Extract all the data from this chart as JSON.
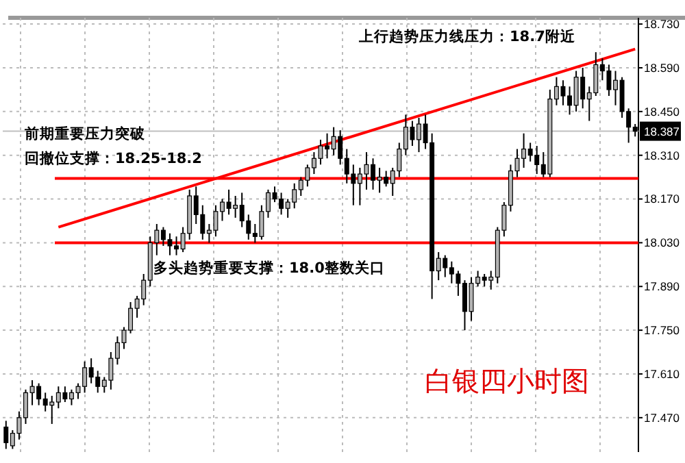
{
  "chart_data": {
    "type": "candlestick",
    "title": "白银四小时图",
    "categories": [
      null,
      null,
      null,
      null,
      null,
      null,
      null,
      null,
      null,
      null,
      null,
      null,
      null,
      null,
      null,
      null,
      null,
      null,
      null,
      null,
      null,
      null,
      null,
      null,
      null,
      null,
      null,
      null,
      null,
      null,
      null,
      null,
      null,
      null,
      null,
      null,
      null,
      null,
      null,
      null,
      null,
      null,
      null,
      null,
      null,
      null,
      null,
      null,
      null,
      null,
      null,
      null,
      null,
      null,
      null,
      null,
      null,
      null,
      null,
      null,
      null,
      null,
      null,
      null,
      null,
      null,
      null,
      null,
      null,
      null,
      null,
      null,
      null,
      null,
      null,
      null,
      null,
      null,
      null,
      null,
      null,
      null,
      null,
      null,
      null,
      null,
      null,
      null,
      null,
      null,
      null,
      null,
      null,
      null,
      null,
      null,
      null
    ],
    "ohlc": [
      [
        17.44,
        17.46,
        17.37,
        17.39
      ],
      [
        17.38,
        17.43,
        17.37,
        17.42
      ],
      [
        17.42,
        17.49,
        17.4,
        17.47
      ],
      [
        17.47,
        17.56,
        17.45,
        17.55
      ],
      [
        17.55,
        17.59,
        17.51,
        17.57
      ],
      [
        17.57,
        17.58,
        17.51,
        17.53
      ],
      [
        17.53,
        17.55,
        17.49,
        17.51
      ],
      [
        17.51,
        17.54,
        17.45,
        17.52
      ],
      [
        17.52,
        17.57,
        17.5,
        17.55
      ],
      [
        17.55,
        17.57,
        17.52,
        17.53
      ],
      [
        17.53,
        17.56,
        17.51,
        17.55
      ],
      [
        17.55,
        17.58,
        17.53,
        17.57
      ],
      [
        17.57,
        17.65,
        17.55,
        17.63
      ],
      [
        17.63,
        17.66,
        17.58,
        17.6
      ],
      [
        17.6,
        17.62,
        17.55,
        17.57
      ],
      [
        17.57,
        17.6,
        17.55,
        17.59
      ],
      [
        17.59,
        17.68,
        17.56,
        17.66
      ],
      [
        17.66,
        17.73,
        17.64,
        17.71
      ],
      [
        17.71,
        17.76,
        17.69,
        17.75
      ],
      [
        17.75,
        17.84,
        17.74,
        17.82
      ],
      [
        17.82,
        17.86,
        17.79,
        17.85
      ],
      [
        17.85,
        17.93,
        17.83,
        17.91
      ],
      [
        17.91,
        18.05,
        17.89,
        18.03
      ],
      [
        18.03,
        18.09,
        17.99,
        18.07
      ],
      [
        18.07,
        18.08,
        18.02,
        18.04
      ],
      [
        18.04,
        18.06,
        17.99,
        18.02
      ],
      [
        18.02,
        18.05,
        17.99,
        18.01
      ],
      [
        18.01,
        18.08,
        18.0,
        18.06
      ],
      [
        18.06,
        18.2,
        18.04,
        18.18
      ],
      [
        18.18,
        18.21,
        18.09,
        18.12
      ],
      [
        18.12,
        18.15,
        18.04,
        18.06
      ],
      [
        18.06,
        18.09,
        18.03,
        18.07
      ],
      [
        18.07,
        18.15,
        18.05,
        18.13
      ],
      [
        18.13,
        18.17,
        18.1,
        18.16
      ],
      [
        18.16,
        18.2,
        18.12,
        18.14
      ],
      [
        18.14,
        18.18,
        18.11,
        18.15
      ],
      [
        18.15,
        18.19,
        18.08,
        18.1
      ],
      [
        18.1,
        18.12,
        18.04,
        18.06
      ],
      [
        18.06,
        18.09,
        18.03,
        18.05
      ],
      [
        18.05,
        18.15,
        18.04,
        18.13
      ],
      [
        18.13,
        18.2,
        18.11,
        18.19
      ],
      [
        18.19,
        18.21,
        18.16,
        18.17
      ],
      [
        18.17,
        18.19,
        18.12,
        18.14
      ],
      [
        18.14,
        18.17,
        18.11,
        18.16
      ],
      [
        18.16,
        18.22,
        18.14,
        18.2
      ],
      [
        18.2,
        18.24,
        18.18,
        18.23
      ],
      [
        18.23,
        18.28,
        18.21,
        18.27
      ],
      [
        18.27,
        18.32,
        18.25,
        18.3
      ],
      [
        18.3,
        18.36,
        18.28,
        18.34
      ],
      [
        18.34,
        18.38,
        18.3,
        18.33
      ],
      [
        18.33,
        18.4,
        18.31,
        18.37
      ],
      [
        18.37,
        18.39,
        18.28,
        18.3
      ],
      [
        18.3,
        18.33,
        18.22,
        18.25
      ],
      [
        18.25,
        18.28,
        18.15,
        18.22
      ],
      [
        18.22,
        18.27,
        18.15,
        18.25
      ],
      [
        18.25,
        18.32,
        18.2,
        18.28
      ],
      [
        18.28,
        18.3,
        18.2,
        18.23
      ],
      [
        18.23,
        18.27,
        18.19,
        18.24
      ],
      [
        18.24,
        18.26,
        18.21,
        18.22
      ],
      [
        18.22,
        18.27,
        18.18,
        18.26
      ],
      [
        18.26,
        18.35,
        18.24,
        18.33
      ],
      [
        18.33,
        18.44,
        18.31,
        18.4
      ],
      [
        18.4,
        18.42,
        18.34,
        18.36
      ],
      [
        18.36,
        18.43,
        18.32,
        18.41
      ],
      [
        18.41,
        18.44,
        18.33,
        18.35
      ],
      [
        18.35,
        18.38,
        17.85,
        17.94
      ],
      [
        17.94,
        18.0,
        17.91,
        17.98
      ],
      [
        17.98,
        17.99,
        17.92,
        17.95
      ],
      [
        17.95,
        17.97,
        17.9,
        17.93
      ],
      [
        17.93,
        17.94,
        17.86,
        17.9
      ],
      [
        17.9,
        17.91,
        17.75,
        17.81
      ],
      [
        17.81,
        17.92,
        17.78,
        17.9
      ],
      [
        17.9,
        17.94,
        17.89,
        17.92
      ],
      [
        17.92,
        17.93,
        17.89,
        17.91
      ],
      [
        17.91,
        17.94,
        17.88,
        17.92
      ],
      [
        17.92,
        18.08,
        17.9,
        18.07
      ],
      [
        18.07,
        18.16,
        18.05,
        18.15
      ],
      [
        18.15,
        18.28,
        18.13,
        18.26
      ],
      [
        18.26,
        18.33,
        18.24,
        18.3
      ],
      [
        18.3,
        18.38,
        18.27,
        18.33
      ],
      [
        18.33,
        18.35,
        18.29,
        18.31
      ],
      [
        18.31,
        18.34,
        18.25,
        18.28
      ],
      [
        18.28,
        18.32,
        18.24,
        18.25
      ],
      [
        18.25,
        18.52,
        18.24,
        18.49
      ],
      [
        18.49,
        18.56,
        18.47,
        18.53
      ],
      [
        18.53,
        18.55,
        18.47,
        18.5
      ],
      [
        18.5,
        18.53,
        18.44,
        18.47
      ],
      [
        18.47,
        18.58,
        18.45,
        18.56
      ],
      [
        18.56,
        18.59,
        18.46,
        18.49
      ],
      [
        18.49,
        18.53,
        18.42,
        18.51
      ],
      [
        18.51,
        18.64,
        18.5,
        18.6
      ],
      [
        18.6,
        18.62,
        18.55,
        18.58
      ],
      [
        18.58,
        18.6,
        18.5,
        18.52
      ],
      [
        18.52,
        18.58,
        18.47,
        18.55
      ],
      [
        18.55,
        18.56,
        18.43,
        18.45
      ],
      [
        18.45,
        18.46,
        18.35,
        18.4
      ],
      [
        18.4,
        18.41,
        18.37,
        18.387
      ]
    ],
    "series": [
      {
        "type": "line",
        "color": "#ff0000",
        "values": [
          null,
          null,
          null,
          null,
          null,
          null,
          null,
          null,
          18.08,
          null,
          null,
          null,
          null,
          null,
          null,
          null,
          null,
          null,
          null,
          null,
          null,
          null,
          null,
          null,
          null,
          null,
          null,
          null,
          null,
          null,
          null,
          null,
          null,
          null,
          null,
          null,
          null,
          null,
          null,
          null,
          null,
          null,
          null,
          null,
          null,
          null,
          null,
          null,
          null,
          null,
          null,
          null,
          null,
          null,
          null,
          null,
          null,
          null,
          null,
          null,
          null,
          null,
          null,
          null,
          null,
          null,
          null,
          null,
          null,
          null,
          null,
          null,
          null,
          null,
          null,
          null,
          null,
          null,
          null,
          null,
          null,
          null,
          null,
          null,
          null,
          null,
          null,
          null,
          null,
          null,
          null,
          null,
          null,
          null,
          null,
          null,
          18.65
        ]
      }
    ],
    "ylim": [
      17.36,
      18.75
    ],
    "yticks": [
      {
        "value": 17.47,
        "label": "17.470"
      },
      {
        "value": 17.61,
        "label": "17.610"
      },
      {
        "value": 17.75,
        "label": "17.750"
      },
      {
        "value": 17.89,
        "label": "17.890"
      },
      {
        "value": 18.03,
        "label": "18.030"
      },
      {
        "value": 18.17,
        "label": "18.170"
      },
      {
        "value": 18.31,
        "label": "18.310"
      },
      {
        "value": 18.45,
        "label": "18.450"
      },
      {
        "value": 18.59,
        "label": "18.590"
      },
      {
        "value": 18.73,
        "label": "18.730"
      }
    ],
    "tick_labels": "y",
    "grid": true,
    "ref_lines": [
      {
        "axis": "y",
        "value": 18.236,
        "color": "#ff0000"
      },
      {
        "axis": "y",
        "value": 18.03,
        "color": "#ff0000"
      },
      {
        "axis": "y",
        "value": 18.387,
        "label": "18.387",
        "color": "#c0c0c0"
      }
    ],
    "annotations": [
      "上行趋势压力线压力：18.7附近",
      "前期重要压力突破",
      "回撤位支撑：18.25-18.2",
      "多头趋势重要支撑：18.0整数关口"
    ]
  }
}
